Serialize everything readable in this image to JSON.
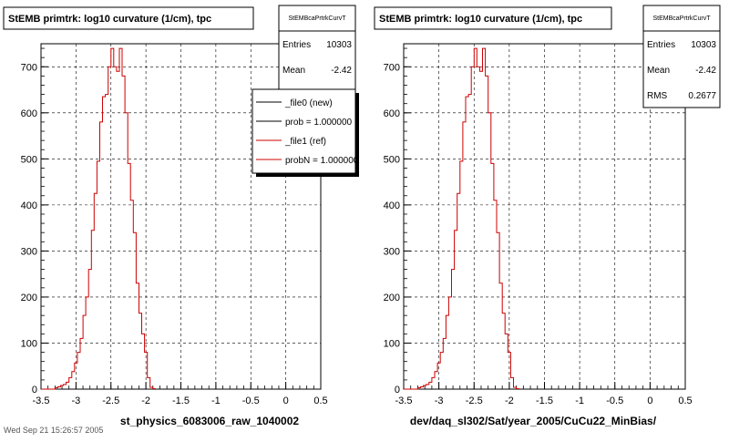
{
  "footer": {
    "timestamp": "Wed Sep 21 15:26:57 2005"
  },
  "chart_data": [
    {
      "type": "bar",
      "title": "StEMB primtrk: log10 curvature (1/cm), tpc",
      "xlabel": "st_physics_6083006_raw_1040002",
      "xlim": [
        -3.5,
        0.5
      ],
      "ylim": [
        0,
        750
      ],
      "x_ticks": [
        "-3.5",
        "-3",
        "-2.5",
        "-2",
        "-1.5",
        "-1",
        "-0.5",
        "0",
        "0.5"
      ],
      "y_ticks": [
        "0",
        "100",
        "200",
        "300",
        "400",
        "500",
        "600",
        "700"
      ],
      "grid": true,
      "stats": {
        "name": "StEMBcaPrtrkCurvT",
        "rows": [
          {
            "label": "Entries",
            "value": "10303"
          },
          {
            "label": "Mean",
            "value": "-2.42"
          }
        ]
      },
      "legend": [
        {
          "label": "_file0 (new)",
          "color": "#000000"
        },
        {
          "label": "prob = 1.000000",
          "color": "#000000"
        },
        {
          "label": "_file1 (ref)",
          "color": "#cc0000"
        },
        {
          "label": "probN = 1.000000",
          "color": "#cc0000"
        }
      ],
      "series": [
        {
          "color": "#cc0000",
          "bin_edges_start": -3.5,
          "bin_width": 0.04,
          "values": [
            0,
            0,
            0,
            0,
            0,
            3,
            5,
            8,
            10,
            15,
            25,
            38,
            57,
            80,
            110,
            160,
            200,
            260,
            345,
            425,
            495,
            580,
            635,
            640,
            700,
            740,
            700,
            690,
            740,
            680,
            600,
            490,
            410,
            340,
            230,
            165,
            120,
            80,
            25,
            4,
            1
          ]
        }
      ]
    },
    {
      "type": "bar",
      "title": "StEMB primtrk: log10 curvature (1/cm), tpc",
      "xlabel": "dev/daq_sl302/Sat/year_2005/CuCu22_MinBias/",
      "xlim": [
        -3.5,
        0.5
      ],
      "ylim": [
        0,
        750
      ],
      "x_ticks": [
        "-3.5",
        "-3",
        "-2.5",
        "-2",
        "-1.5",
        "-1",
        "-0.5",
        "0",
        "0.5"
      ],
      "y_ticks": [
        "0",
        "100",
        "200",
        "300",
        "400",
        "500",
        "600",
        "700"
      ],
      "grid": true,
      "stats": {
        "name": "StEMBcaPrtrkCurvT",
        "rows": [
          {
            "label": "Entries",
            "value": "10303"
          },
          {
            "label": "Mean",
            "value": "-2.42"
          },
          {
            "label": "RMS",
            "value": "0.2677"
          }
        ]
      },
      "legend": [],
      "series": [
        {
          "color": "#cc0000",
          "bin_edges_start": -3.5,
          "bin_width": 0.04,
          "values": [
            0,
            0,
            0,
            0,
            0,
            3,
            5,
            8,
            10,
            15,
            25,
            38,
            57,
            80,
            110,
            160,
            200,
            260,
            345,
            425,
            495,
            580,
            635,
            640,
            700,
            740,
            700,
            690,
            740,
            680,
            600,
            490,
            410,
            340,
            230,
            165,
            120,
            80,
            25,
            4,
            1
          ]
        }
      ]
    }
  ]
}
